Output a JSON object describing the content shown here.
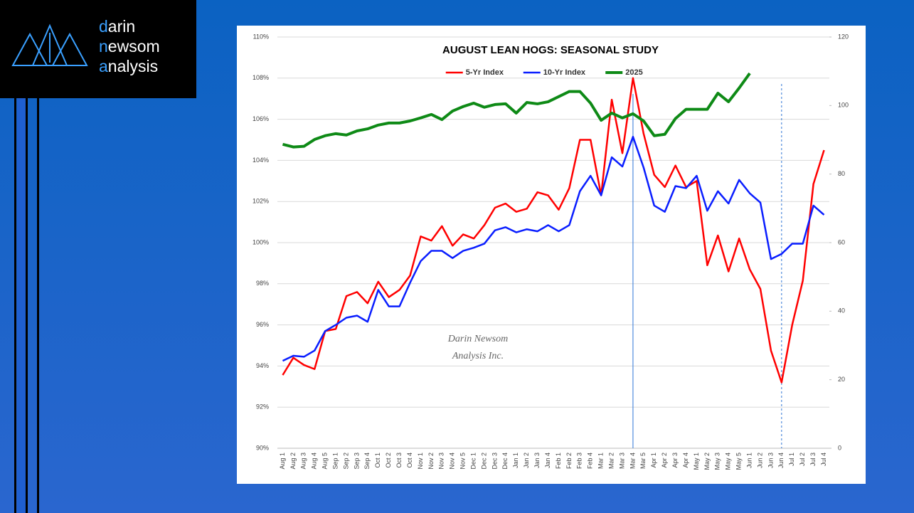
{
  "brand": {
    "lines": [
      "darin",
      "newsom",
      "analysis"
    ]
  },
  "chart_data": {
    "type": "line",
    "title": "AUGUST LEAN HOGS: SEASONAL STUDY",
    "categories": [
      "Aug 1",
      "Aug 2",
      "Aug 3",
      "Aug 4",
      "Aug 5",
      "Sep 1",
      "Sep 2",
      "Sep 3",
      "Sep 4",
      "Oct 1",
      "Oct 2",
      "Oct 3",
      "Oct 4",
      "Nov 1",
      "Nov 2",
      "Nov 3",
      "Nov 4",
      "Nov 5",
      "Dec 1",
      "Dec 2",
      "Dec 3",
      "Dec 4",
      "Jan 1",
      "Jan 2",
      "Jan 3",
      "Jan 4",
      "Feb 1",
      "Feb 2",
      "Feb 3",
      "Feb 4",
      "Mar 1",
      "Mar 2",
      "Mar 3",
      "Mar 4",
      "Mar 5",
      "Apr 1",
      "Apr 2",
      "Apr 3",
      "Apr 4",
      "May 1",
      "May 2",
      "May 3",
      "May 4",
      "May 5",
      "Jun 1",
      "Jun 2",
      "Jun 3",
      "Jun 4",
      "Jul 1",
      "Jul 2",
      "Jul 3",
      "Jul 4"
    ],
    "series": [
      {
        "name": "5-Yr Index",
        "color": "#ff0000",
        "values": [
          93.56,
          94.4,
          94.05,
          93.85,
          95.7,
          95.8,
          97.4,
          97.6,
          97.05,
          98.1,
          97.35,
          97.7,
          98.4,
          100.3,
          100.1,
          100.8,
          99.85,
          100.4,
          100.2,
          100.85,
          101.7,
          101.9,
          101.5,
          101.65,
          102.45,
          102.3,
          101.6,
          102.65,
          105.0,
          105.0,
          102.3,
          106.95,
          104.35,
          108.0,
          105.3,
          103.3,
          102.7,
          103.75,
          102.7,
          103.0,
          98.9,
          100.35,
          98.6,
          100.2,
          98.7,
          97.75,
          94.75,
          93.2,
          96.0,
          98.15,
          102.85,
          104.5
        ]
      },
      {
        "name": "10-Yr Index",
        "color": "#0a1eff",
        "values": [
          94.25,
          94.5,
          94.45,
          94.75,
          95.7,
          96.0,
          96.35,
          96.45,
          96.15,
          97.7,
          96.9,
          96.9,
          98.05,
          99.1,
          99.6,
          99.6,
          99.25,
          99.6,
          99.75,
          99.95,
          100.6,
          100.75,
          100.5,
          100.65,
          100.55,
          100.85,
          100.55,
          100.85,
          102.5,
          103.25,
          102.3,
          104.15,
          103.7,
          105.15,
          103.65,
          101.8,
          101.5,
          102.75,
          102.65,
          103.25,
          101.55,
          102.5,
          101.9,
          103.05,
          102.4,
          101.95,
          99.2,
          99.45,
          99.95,
          99.95,
          101.8,
          101.35
        ]
      },
      {
        "name": "2025",
        "color": "#0e8a16",
        "axis": "y2",
        "values": [
          88.7,
          87.9,
          88.1,
          90.1,
          91.2,
          91.8,
          91.4,
          92.6,
          93.2,
          94.3,
          94.9,
          94.9,
          95.5,
          96.4,
          97.4,
          95.9,
          98.4,
          99.7,
          100.7,
          99.5,
          100.3,
          100.5,
          97.8,
          100.9,
          100.5,
          101.1,
          102.6,
          104.1,
          104.1,
          100.7,
          95.7,
          97.8,
          96.4,
          97.6,
          95.5,
          91.2,
          91.6,
          96.2,
          98.9,
          98.9,
          98.9,
          103.6,
          101.1,
          105.1,
          109.4,
          null,
          null,
          null,
          null,
          null,
          null,
          null
        ]
      }
    ],
    "ylim": [
      90,
      110
    ],
    "yticks": [
      {
        "value": 90,
        "label": "90%"
      },
      {
        "value": 92,
        "label": "92%"
      },
      {
        "value": 94,
        "label": "94%"
      },
      {
        "value": 96,
        "label": "96%"
      },
      {
        "value": 98,
        "label": "98%"
      },
      {
        "value": 100,
        "label": "100%"
      },
      {
        "value": 102,
        "label": "102%"
      },
      {
        "value": 104,
        "label": "104%"
      },
      {
        "value": 106,
        "label": "106%"
      },
      {
        "value": 108,
        "label": "108%"
      },
      {
        "value": 110,
        "label": "110%"
      }
    ],
    "y2lim": [
      0,
      120
    ],
    "y2ticks": [
      0,
      20,
      40,
      60,
      80,
      100,
      120
    ],
    "grid": true,
    "legend": "top",
    "vertical_lines": [
      {
        "category": "Mar 4",
        "style": "solid"
      },
      {
        "category": "Jun 4",
        "style": "dashed"
      }
    ],
    "annotations": [
      "Darin Newsom",
      "Analysis Inc."
    ]
  }
}
